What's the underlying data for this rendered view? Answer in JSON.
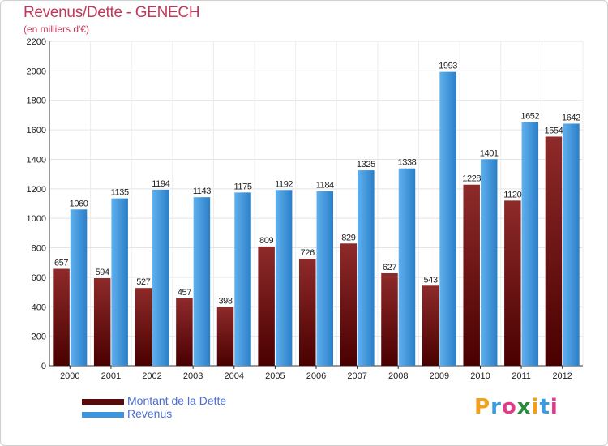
{
  "header": {
    "title": "Revenus/Dette - GENECH",
    "subtitle": "(en milliers d'€)"
  },
  "chart_data": {
    "type": "bar",
    "title": "Revenus/Dette - GENECH",
    "subtitle": "(en milliers d'€)",
    "categories": [
      "2000",
      "2001",
      "2002",
      "2003",
      "2004",
      "2005",
      "2006",
      "2007",
      "2008",
      "2009",
      "2010",
      "2011",
      "2012"
    ],
    "series": [
      {
        "name": "Montant de la Dette",
        "color": "#7a1515",
        "values": [
          657,
          594,
          527,
          457,
          398,
          809,
          726,
          829,
          627,
          543,
          1228,
          1120,
          1554
        ]
      },
      {
        "name": "Revenus",
        "color": "#3d95dd",
        "values": [
          1060,
          1135,
          1194,
          1143,
          1175,
          1192,
          1184,
          1325,
          1338,
          1993,
          1401,
          1652,
          1642
        ]
      }
    ],
    "value_labels": [
      [
        "657",
        "594",
        "527",
        "457",
        "398",
        "809",
        "726",
        "829",
        "627",
        "543",
        "1228",
        "1120",
        "1554"
      ],
      [
        "1060",
        "1135",
        "1194",
        "1143",
        "1175",
        "1192",
        "1184",
        "1325",
        "1338",
        "1993",
        "1401",
        "1652",
        "1642"
      ]
    ],
    "ylim": [
      0,
      2200
    ],
    "yticks": [
      0,
      200,
      400,
      600,
      800,
      1000,
      1200,
      1400,
      1600,
      1800,
      2000,
      2200
    ],
    "xlabel": "",
    "ylabel": "",
    "grid": true,
    "legend_position": "bottom-left"
  },
  "legend": {
    "items": [
      {
        "label": "Montant de la Dette",
        "color": "#5a0a0a"
      },
      {
        "label": "Revenus",
        "color": "#3d95dd"
      }
    ]
  },
  "brand": {
    "letters": [
      "P",
      "r",
      "o",
      "x",
      "i",
      "t",
      "i"
    ],
    "colors": [
      "#f0a020",
      "#3c9be0",
      "#e03c8c",
      "#2c8a3c",
      "#f0a020",
      "#3c9be0",
      "#e03c8c"
    ]
  }
}
